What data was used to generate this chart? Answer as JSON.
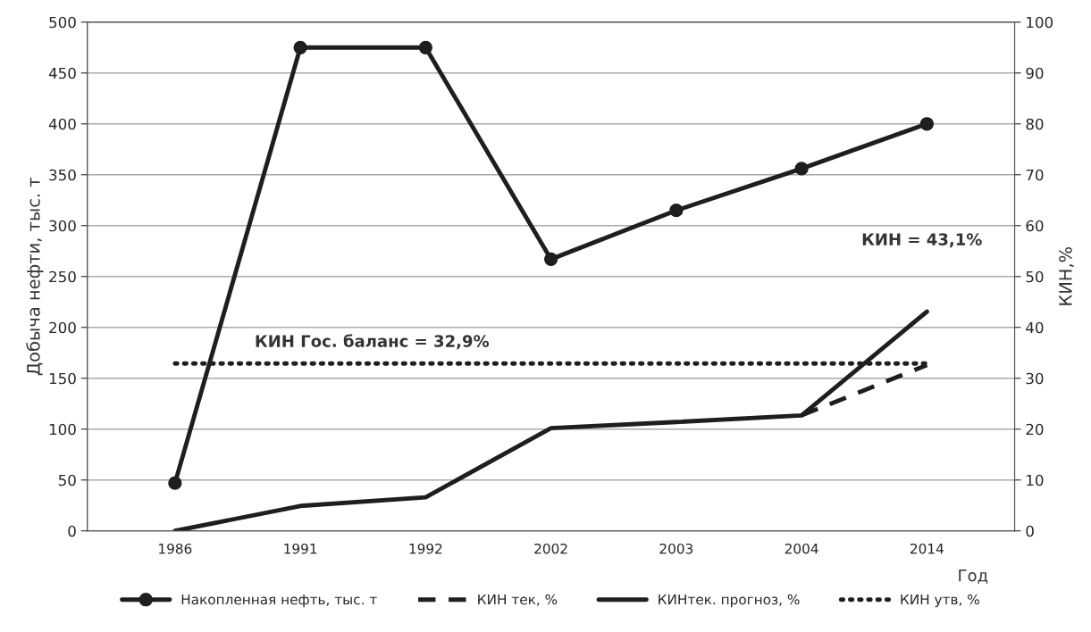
{
  "chart_data": {
    "type": "line",
    "categories": [
      "1986",
      "1991",
      "1992",
      "2002",
      "2003",
      "2004",
      "2014"
    ],
    "xlabel": "Год",
    "ylabel": "Добыча нефти, тыс. т",
    "y2label": "КИН,%",
    "series": [
      {
        "name": "Накопленная нефть, тыс. т",
        "color": "#1e1e1e",
        "values": [
          47,
          475,
          475,
          267,
          315,
          356,
          400
        ],
        "marker": "circle",
        "line_style": "solid"
      },
      {
        "name": "КИН тек, %",
        "color": "#1e1e1e",
        "values": [
          null,
          null,
          null,
          null,
          null,
          22.7,
          32.6
        ],
        "axis": "y2",
        "marker": "none",
        "line_style": "dashed"
      },
      {
        "name": "КИНтек. прогноз, %",
        "color": "#1e1e1e",
        "values": [
          0,
          4.9,
          6.6,
          20.2,
          21.4,
          22.7,
          43.1
        ],
        "axis": "y2",
        "marker": "none",
        "line_style": "solid"
      },
      {
        "name": "КИН утв, %",
        "color": "#1e1e1e",
        "values": [
          32.9,
          32.9,
          32.9,
          32.9,
          32.9,
          32.9,
          32.9
        ],
        "axis": "y2",
        "marker": "none",
        "line_style": "dotted"
      }
    ],
    "ylim": [
      0,
      500
    ],
    "yticks": [
      0,
      50,
      100,
      150,
      200,
      250,
      300,
      350,
      400,
      450,
      500
    ],
    "y2lim": [
      0,
      100
    ],
    "y2ticks": [
      0,
      10,
      20,
      30,
      40,
      50,
      60,
      70,
      80,
      90,
      100
    ],
    "grid": "y",
    "legend": "bottom",
    "annotations": [
      "КИН Гос. баланс = 32,9%",
      "КИН = 43,1%"
    ]
  }
}
